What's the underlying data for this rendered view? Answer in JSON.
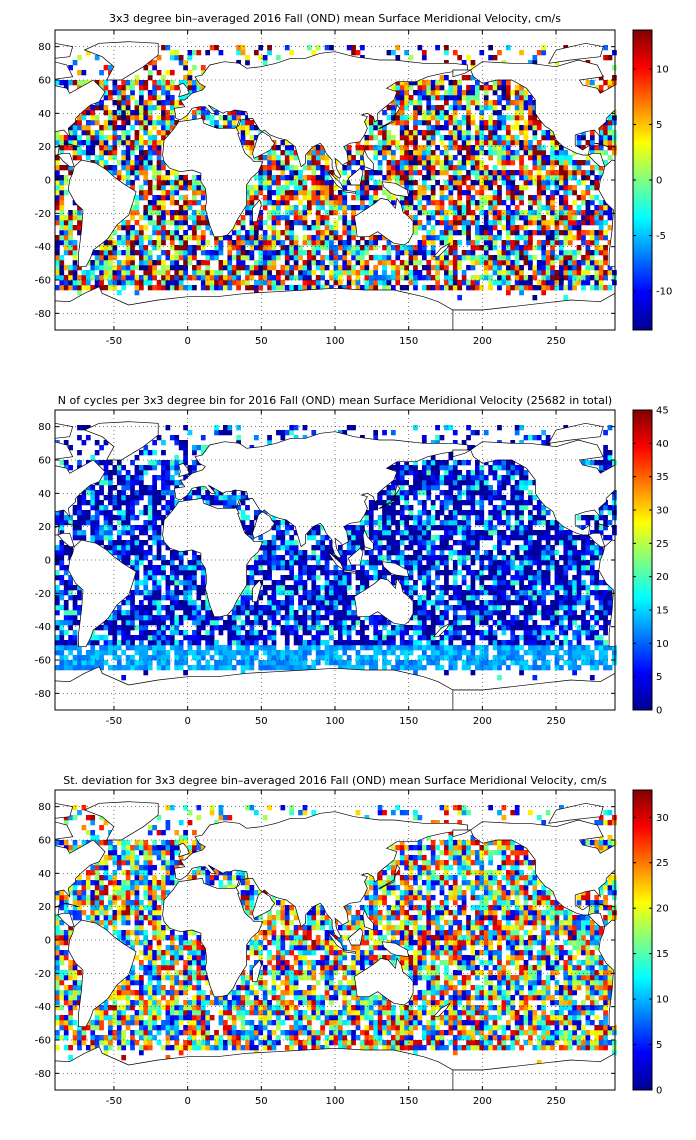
{
  "chart_data": [
    {
      "type": "heatmap",
      "title": "3x3 degree bin–averaged 2016 Fall (OND) mean Surface Meridional Velocity, cm/s",
      "xlabel": "",
      "ylabel": "",
      "xlim": [
        -90,
        290
      ],
      "ylim": [
        -90,
        90
      ],
      "x_ticks": [
        -50,
        0,
        50,
        100,
        150,
        200,
        250
      ],
      "y_ticks": [
        -80,
        -60,
        -40,
        -20,
        0,
        20,
        40,
        60,
        80
      ],
      "bin_size_deg": 3,
      "colorbar": {
        "min": -13.5,
        "max": 13.5,
        "ticks": [
          -10,
          -5,
          0,
          5,
          10
        ],
        "colormap": "jet"
      },
      "grid": true,
      "value_range": [
        -13.5,
        13.5
      ]
    },
    {
      "type": "heatmap",
      "title": "N of cycles per 3x3 degree bin for 2016 Fall (OND) mean Surface Meridional Velocity (25682 in total)",
      "xlabel": "",
      "ylabel": "",
      "xlim": [
        -90,
        290
      ],
      "ylim": [
        -90,
        90
      ],
      "x_ticks": [
        -50,
        0,
        50,
        100,
        150,
        200,
        250
      ],
      "y_ticks": [
        -80,
        -60,
        -40,
        -20,
        0,
        20,
        40,
        60,
        80
      ],
      "bin_size_deg": 3,
      "total_count": 25682,
      "colorbar": {
        "min": 0,
        "max": 45,
        "ticks": [
          0,
          5,
          10,
          15,
          20,
          25,
          30,
          35,
          40,
          45
        ],
        "colormap": "jet"
      },
      "grid": true,
      "value_range": [
        0,
        45
      ]
    },
    {
      "type": "heatmap",
      "title": "St. deviation for 3x3 degree bin–averaged 2016 Fall (OND) mean Surface Meridional Velocity, cm/s",
      "xlabel": "",
      "ylabel": "",
      "xlim": [
        -90,
        290
      ],
      "ylim": [
        -90,
        90
      ],
      "x_ticks": [
        -50,
        0,
        50,
        100,
        150,
        200,
        250
      ],
      "y_ticks": [
        -80,
        -60,
        -40,
        -20,
        0,
        20,
        40,
        60,
        80
      ],
      "bin_size_deg": 3,
      "colorbar": {
        "min": 0,
        "max": 33,
        "ticks": [
          0,
          5,
          10,
          15,
          20,
          25,
          30
        ],
        "colormap": "jet"
      },
      "grid": true,
      "value_range": [
        0,
        33
      ]
    }
  ]
}
